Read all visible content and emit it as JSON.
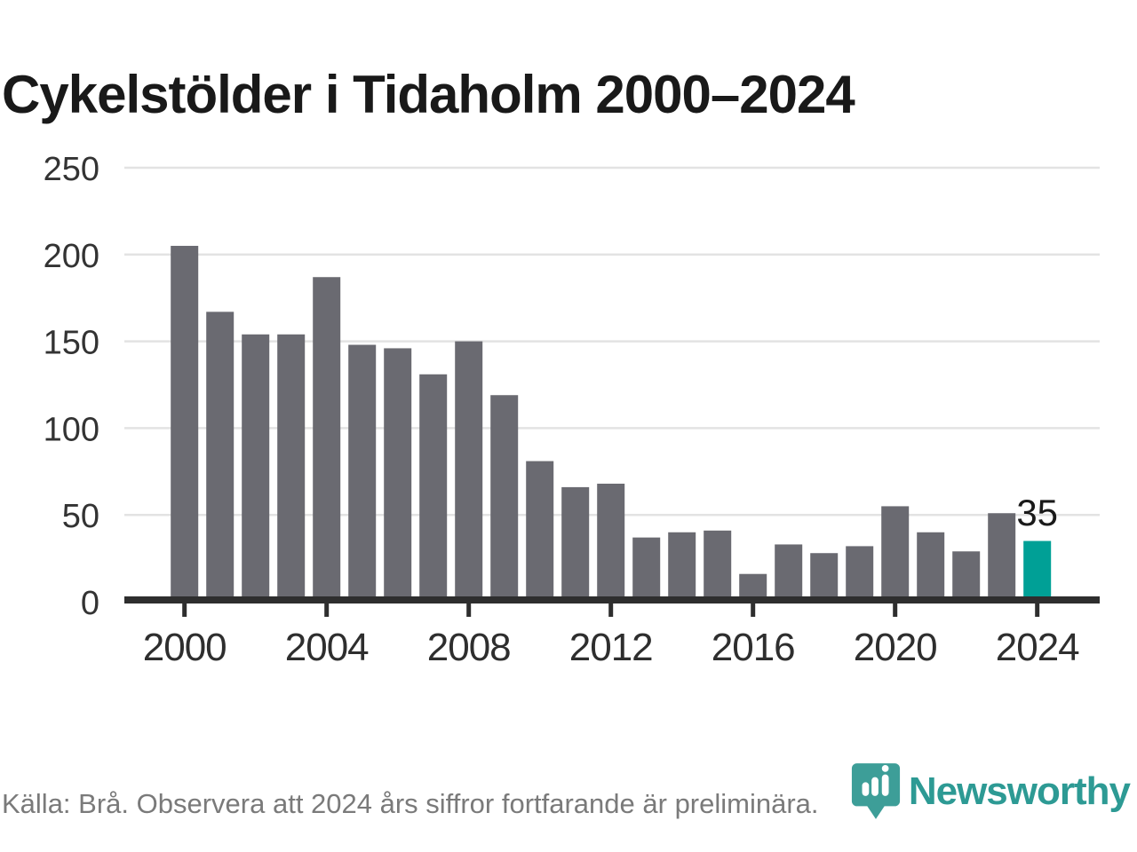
{
  "title": "Cykelstölder i Tidaholm 2000–2024",
  "chart_data": {
    "type": "bar",
    "title": "Cykelstölder i Tidaholm 2000–2024",
    "xlabel": "",
    "ylabel": "",
    "x": [
      2000,
      2001,
      2002,
      2003,
      2004,
      2005,
      2006,
      2007,
      2008,
      2009,
      2010,
      2011,
      2012,
      2013,
      2014,
      2015,
      2016,
      2017,
      2018,
      2019,
      2020,
      2021,
      2022,
      2023,
      2024
    ],
    "values": [
      205,
      167,
      154,
      154,
      187,
      148,
      146,
      131,
      150,
      119,
      81,
      66,
      68,
      37,
      40,
      41,
      16,
      33,
      28,
      32,
      55,
      40,
      29,
      51,
      35
    ],
    "ylim": [
      0,
      250
    ],
    "yticks": [
      0,
      50,
      100,
      150,
      200,
      250
    ],
    "xticks": [
      2000,
      2004,
      2008,
      2012,
      2016,
      2020,
      2024
    ],
    "grid": true,
    "legend": "none",
    "highlight_x": 2024,
    "annotation": {
      "x": 2024,
      "label": "35"
    },
    "colors": {
      "bar": "#6a6a71",
      "highlight": "#00a096",
      "axis": "#2e2e2e",
      "gridline": "#e3e3e3",
      "tick_label": "#333333",
      "annotation_text": "#1a1a1a"
    }
  },
  "footer": {
    "source_text": "Källa: Brå. Observera att 2024 års siffror fortfarande är preliminära."
  },
  "logo": {
    "text": "Newsworthy",
    "icon": "newsworthy-pin-icon",
    "pin_color": "#3d9e98",
    "text_color": "#2d9a94"
  }
}
